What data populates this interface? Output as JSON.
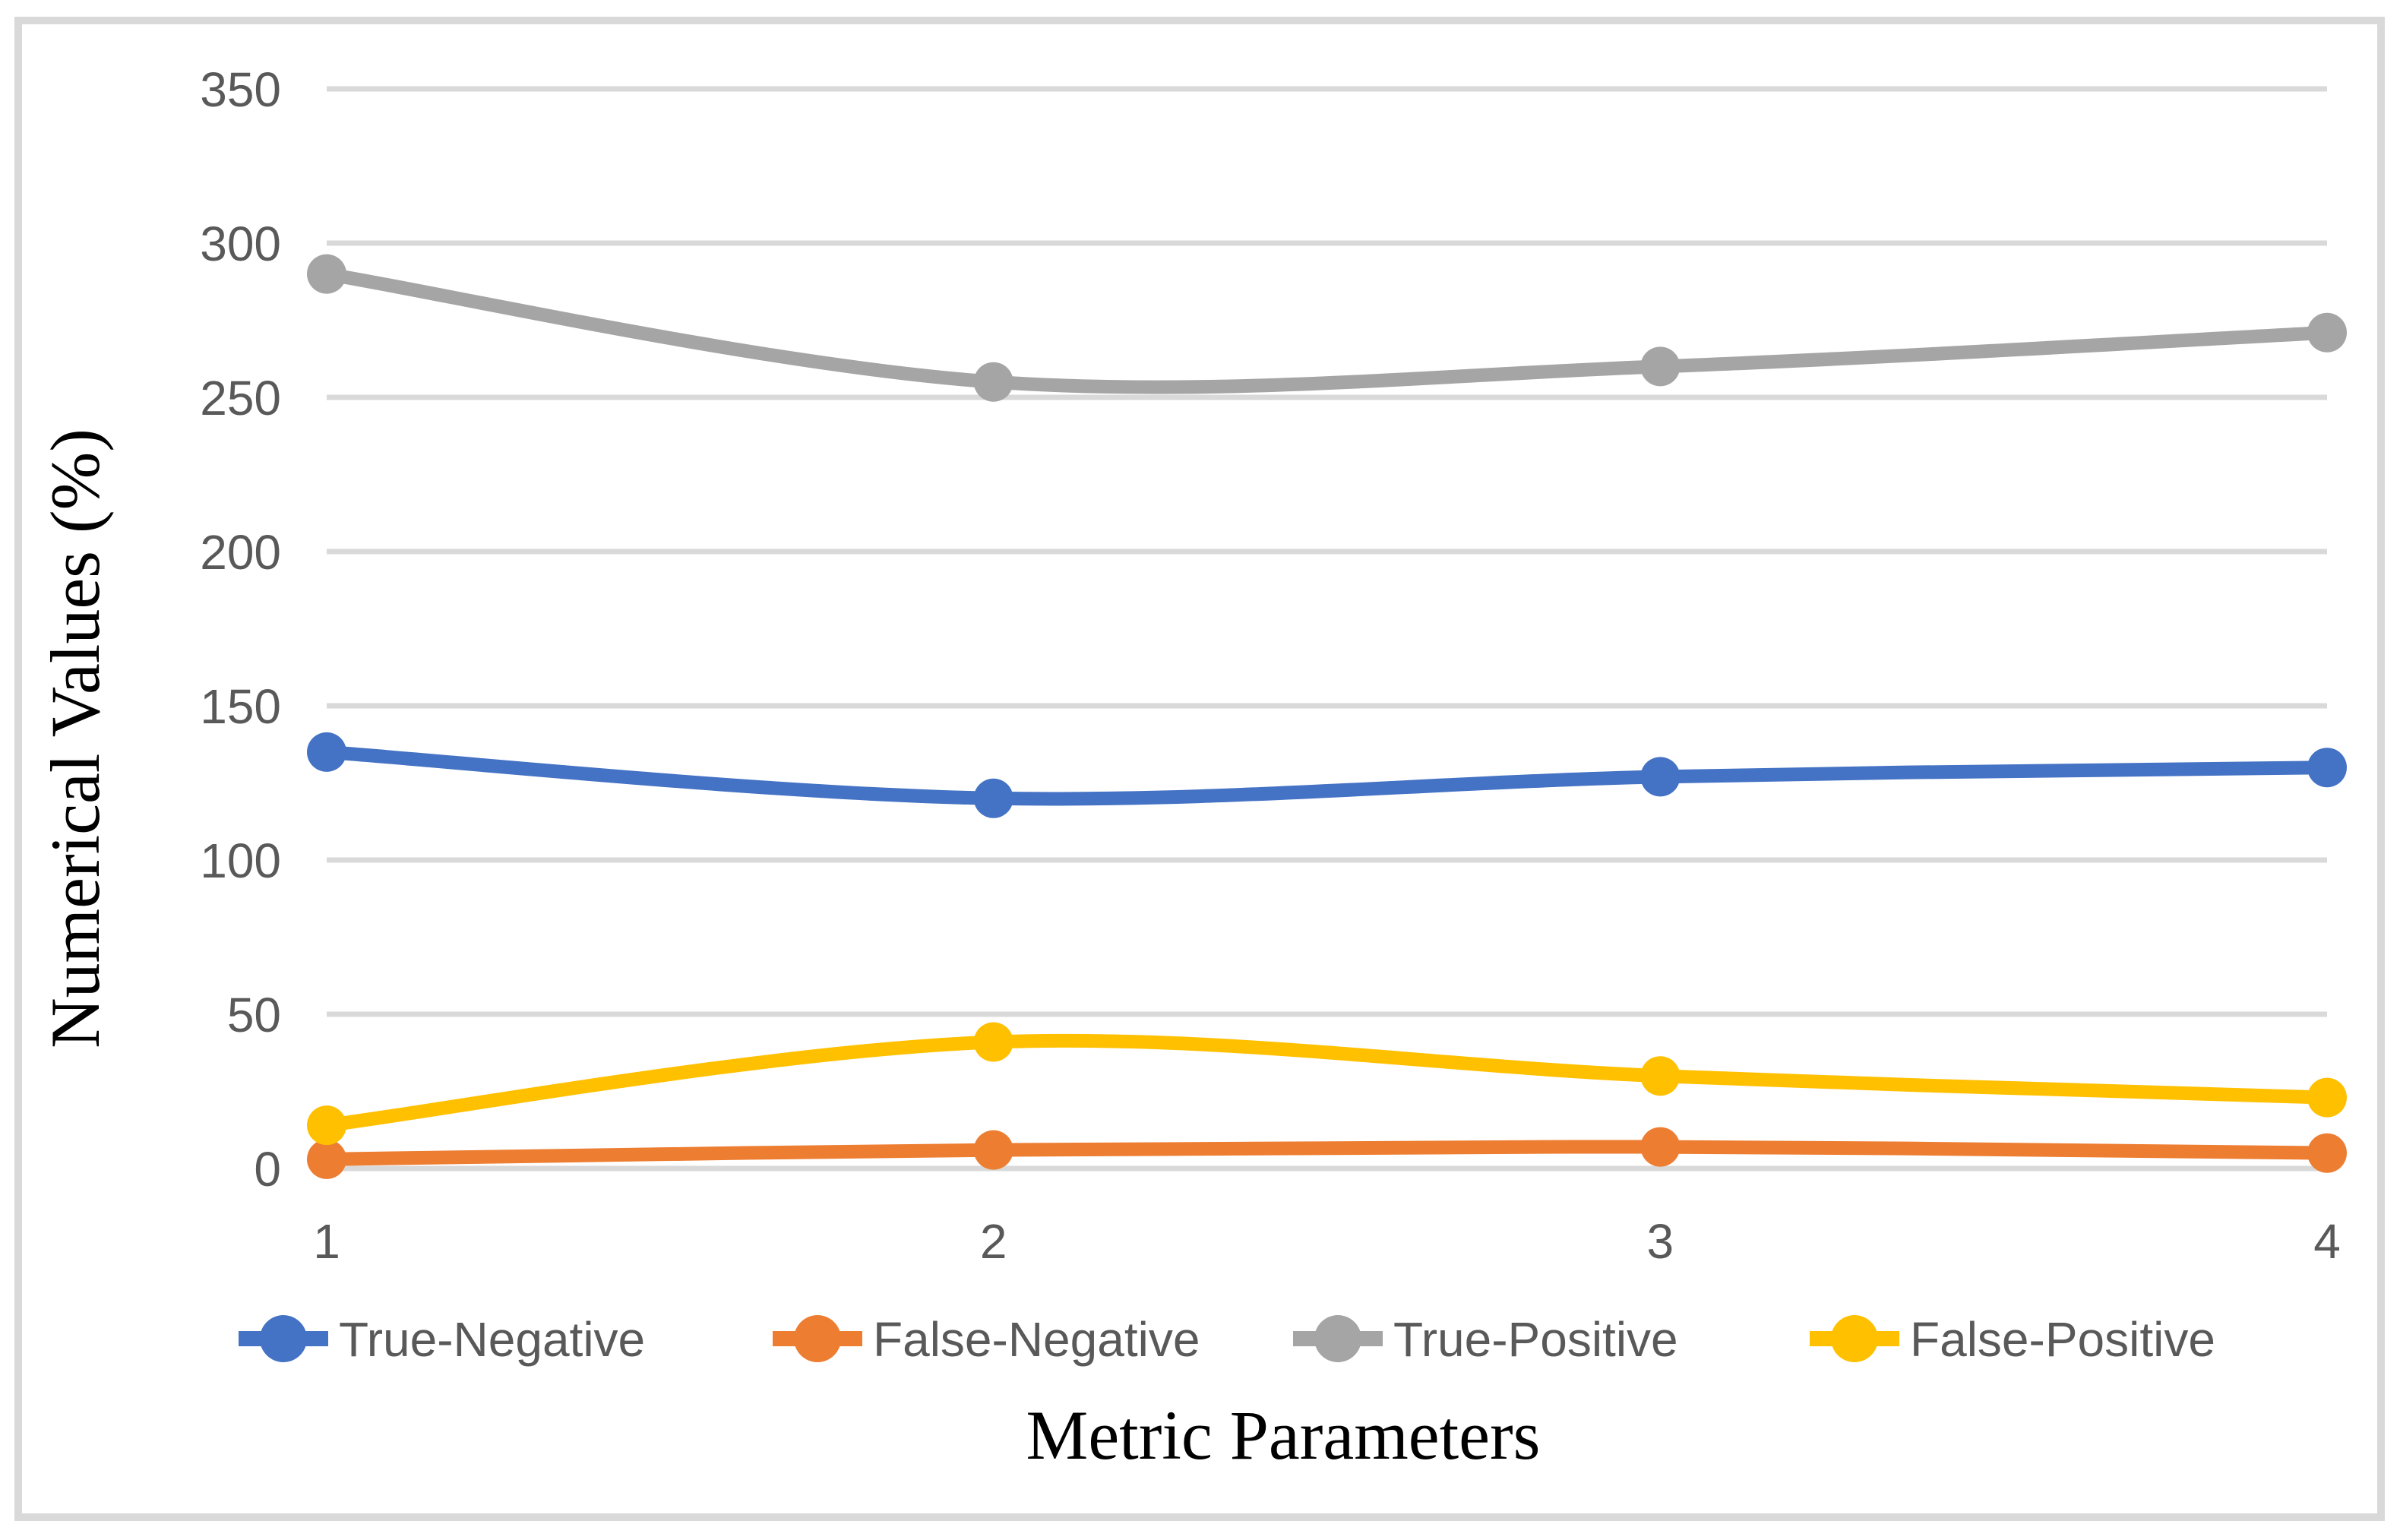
{
  "figure": {
    "frame_color": "#D9D9D9",
    "background": "#FFFFFF"
  },
  "chart_data": {
    "type": "line",
    "title": "",
    "xlabel": "Metric Parameters",
    "ylabel": "Numerical Values (%)",
    "categories": [
      "1",
      "2",
      "3",
      "4"
    ],
    "series": [
      {
        "name": "True-Negative",
        "color": "#4472C4",
        "values": [
          135,
          120,
          127,
          130
        ]
      },
      {
        "name": "False-Negative",
        "color": "#ED7D31",
        "values": [
          3,
          6,
          7,
          5
        ]
      },
      {
        "name": "True-Positive",
        "color": "#A5A5A5",
        "values": [
          290,
          255,
          260,
          271
        ]
      },
      {
        "name": "False-Positive",
        "color": "#FFC000",
        "values": [
          14,
          41,
          30,
          23
        ]
      }
    ],
    "ylim": [
      0,
      350
    ],
    "yticks": [
      0,
      50,
      100,
      150,
      200,
      250,
      300,
      350
    ],
    "grid": true,
    "gridline_color": "#D9D9D9",
    "tick_label_color": "#595959",
    "line_style": "smooth",
    "legend_position": "bottom"
  }
}
